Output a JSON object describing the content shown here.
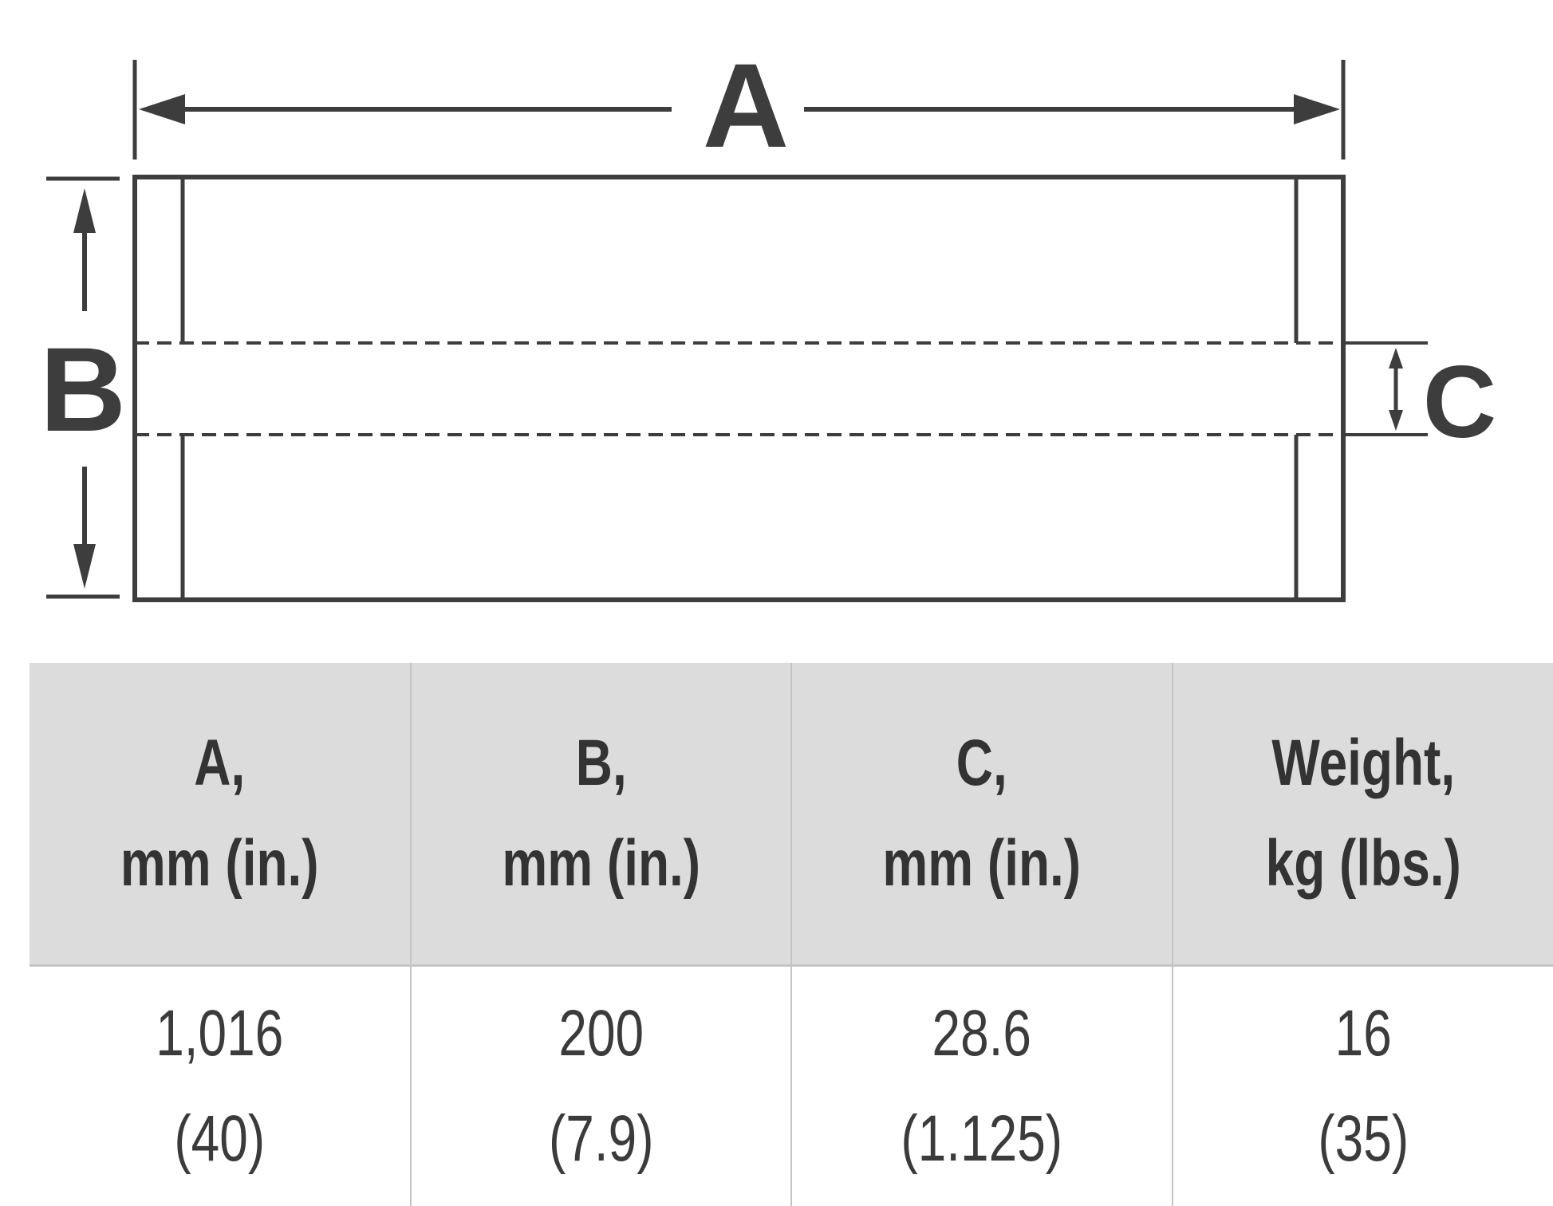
{
  "diagram": {
    "labels": {
      "a": "A",
      "b": "B",
      "c": "C"
    },
    "line_color": "#3d3d3d"
  },
  "table": {
    "header_bg": "#dcdcdc",
    "columns": [
      {
        "line1": "A,",
        "line2": "mm (in.)"
      },
      {
        "line1": "B,",
        "line2": "mm (in.)"
      },
      {
        "line1": "C,",
        "line2": "mm (in.)"
      },
      {
        "line1": "Weight,",
        "line2": "kg (lbs.)"
      }
    ],
    "rows": [
      [
        {
          "line1": "1,016",
          "line2": "(40)"
        },
        {
          "line1": "200",
          "line2": "(7.9)"
        },
        {
          "line1": "28.6",
          "line2": "(1.125)"
        },
        {
          "line1": "16",
          "line2": "(35)"
        }
      ]
    ]
  }
}
